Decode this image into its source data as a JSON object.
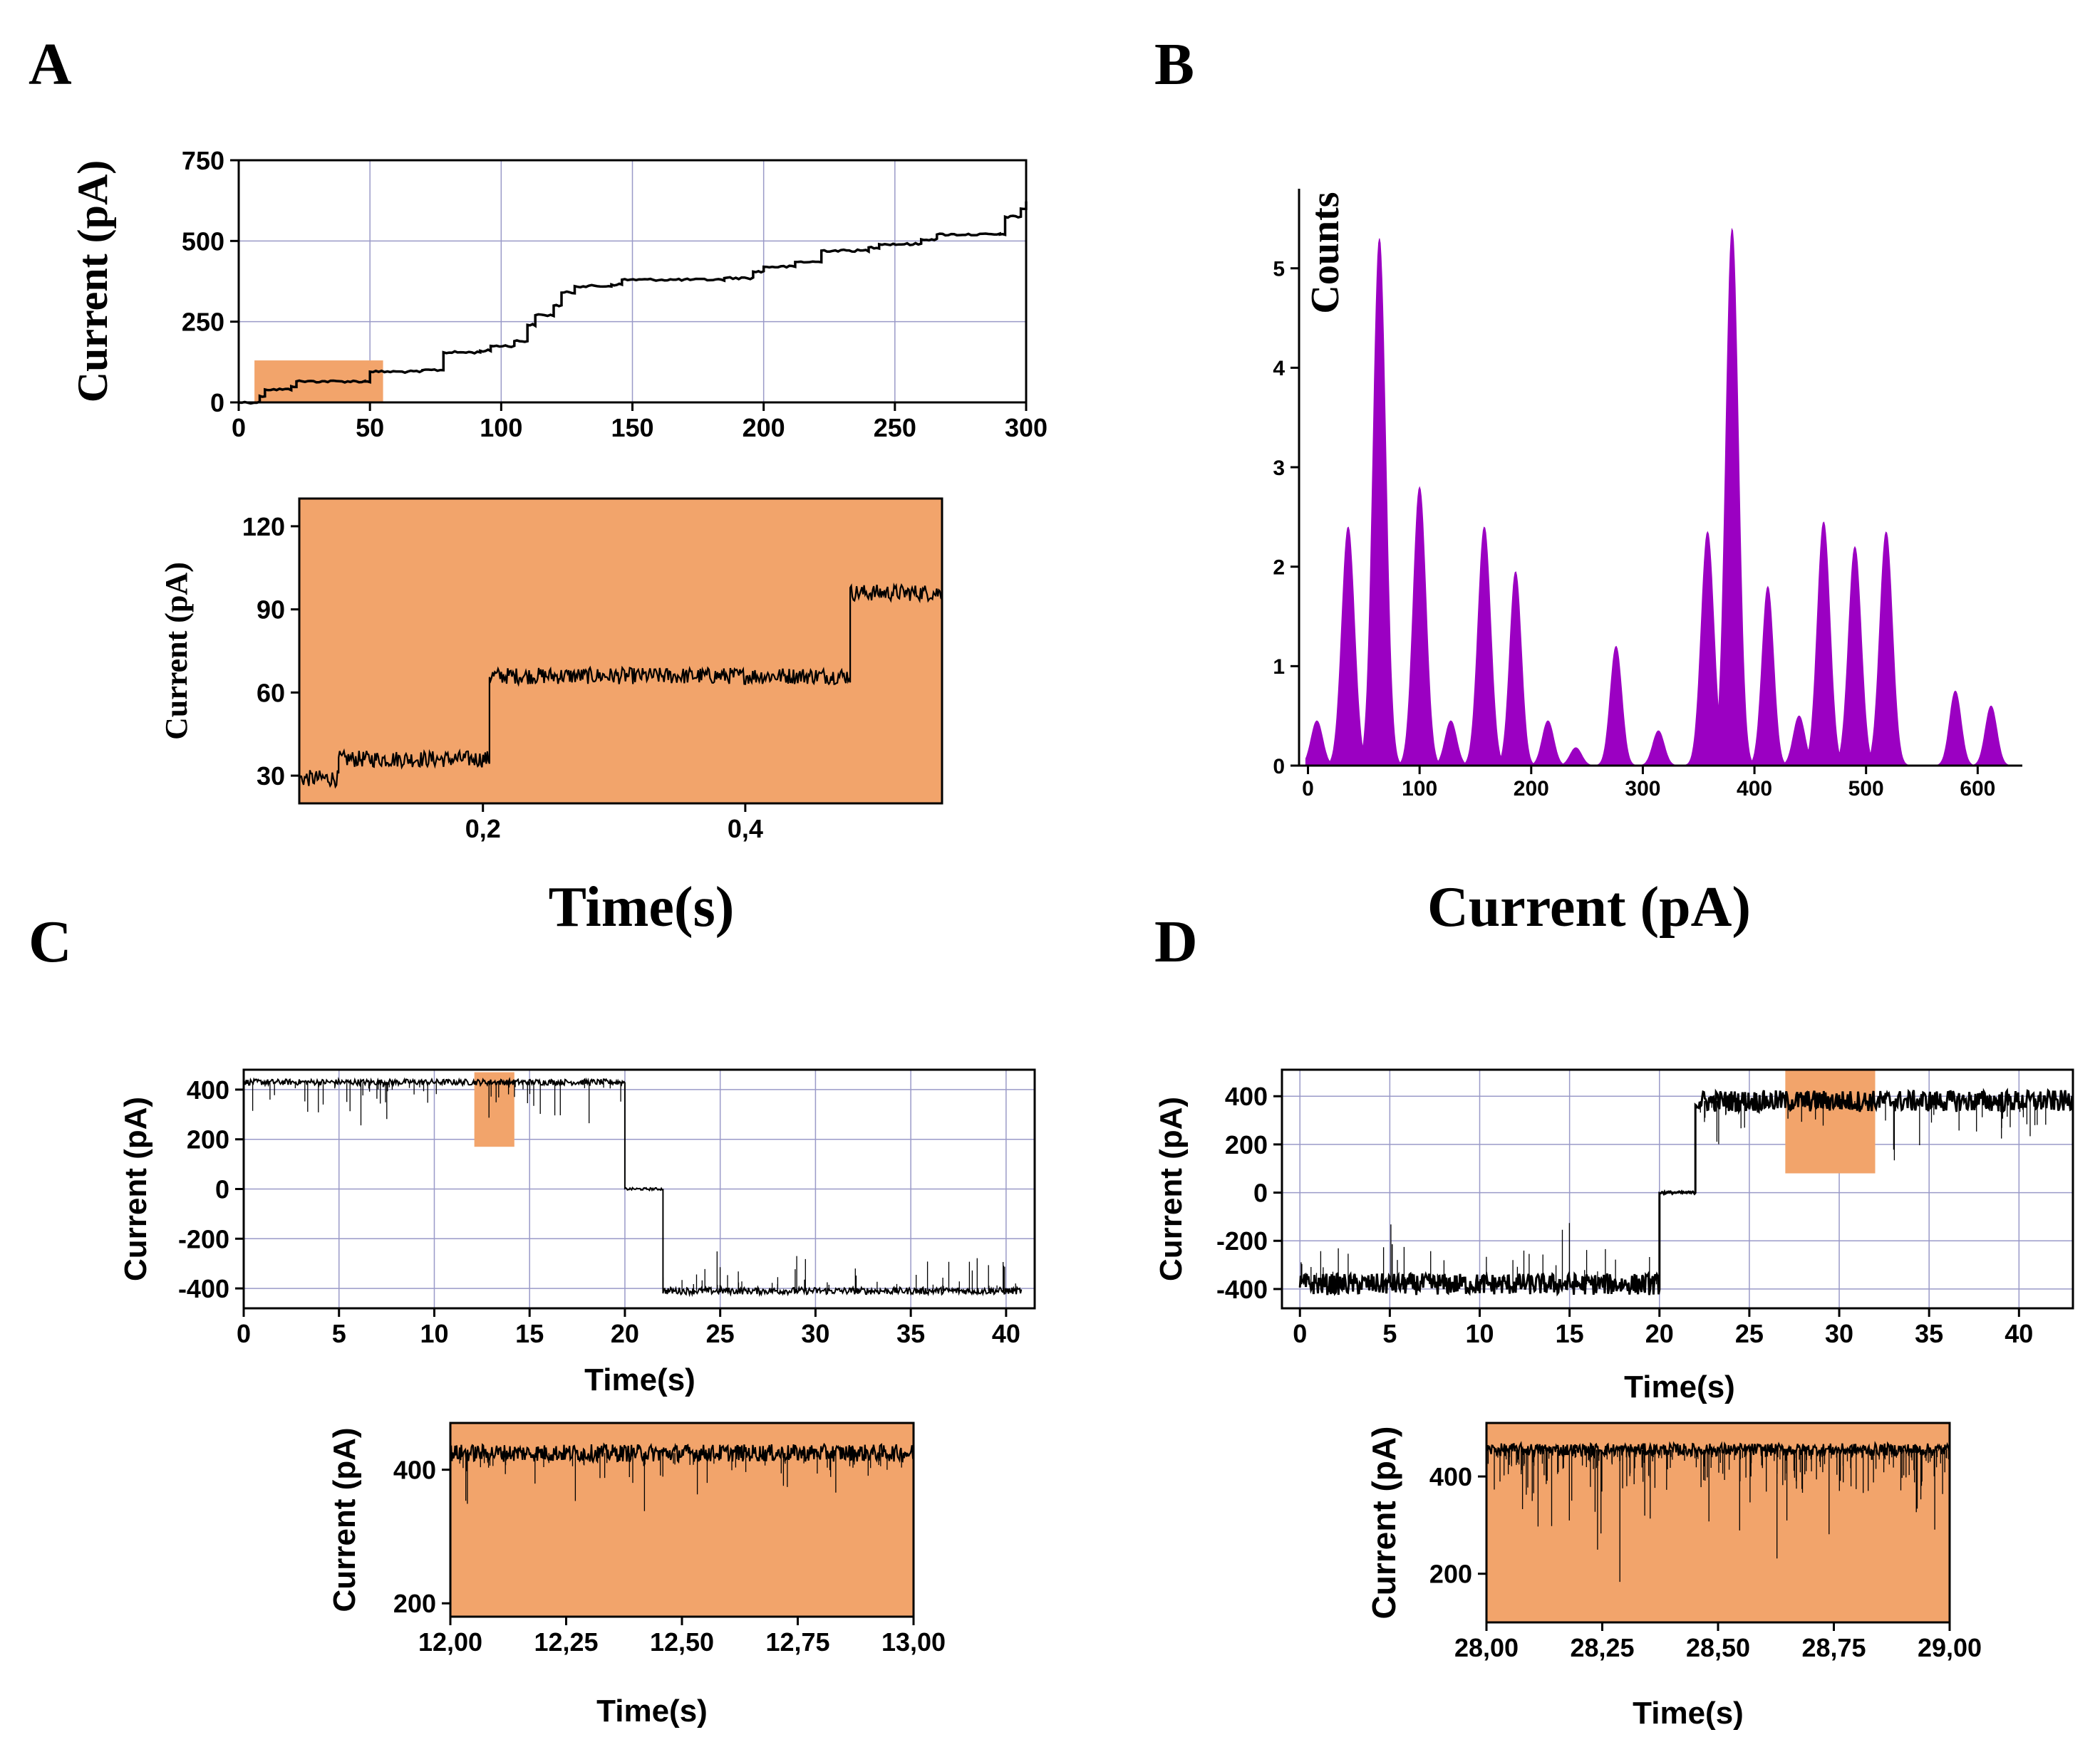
{
  "panels": {
    "A": {
      "letter": "A",
      "xlabel": "Time(s)"
    },
    "B": {
      "letter": "B",
      "xlabel": "Current (pA)"
    },
    "C": {
      "letter": "C"
    },
    "D": {
      "letter": "D"
    }
  },
  "colors": {
    "highlight": "#f2a46b",
    "trace": "#000000",
    "histogram": "#9b00c2",
    "grid": "#9a9ac8"
  },
  "chart_data": [
    {
      "id": "A_main",
      "type": "line",
      "ylabel": "Current (pA)",
      "xlim": [
        0,
        300
      ],
      "ylim": [
        0,
        750
      ],
      "xticks": [
        0,
        50,
        100,
        150,
        200,
        250,
        300
      ],
      "yticks": [
        0,
        250,
        500,
        750
      ],
      "highlight": {
        "x": [
          6,
          55
        ],
        "y": [
          0,
          130
        ]
      },
      "steps": [
        [
          0,
          0
        ],
        [
          8,
          20
        ],
        [
          10,
          40
        ],
        [
          20,
          50
        ],
        [
          22,
          65
        ],
        [
          48,
          65
        ],
        [
          50,
          95
        ],
        [
          70,
          100
        ],
        [
          78,
          155
        ],
        [
          92,
          160
        ],
        [
          96,
          175
        ],
        [
          105,
          190
        ],
        [
          110,
          240
        ],
        [
          113,
          270
        ],
        [
          120,
          300
        ],
        [
          123,
          340
        ],
        [
          128,
          360
        ],
        [
          142,
          365
        ],
        [
          146,
          380
        ],
        [
          185,
          385
        ],
        [
          196,
          405
        ],
        [
          200,
          420
        ],
        [
          212,
          435
        ],
        [
          222,
          470
        ],
        [
          240,
          480
        ],
        [
          244,
          490
        ],
        [
          260,
          505
        ],
        [
          266,
          520
        ],
        [
          290,
          520
        ],
        [
          292,
          575
        ],
        [
          298,
          600
        ],
        [
          300,
          620
        ]
      ]
    },
    {
      "id": "A_inset",
      "type": "line",
      "ylabel": "Current (pA)",
      "xlim": [
        0.06,
        0.55
      ],
      "ylim": [
        20,
        130
      ],
      "xticks": [
        0.2,
        0.4
      ],
      "xtick_labels": [
        "0,2",
        "0,4"
      ],
      "yticks": [
        30,
        60,
        90,
        120
      ],
      "steps": [
        [
          0.06,
          29
        ],
        [
          0.09,
          36
        ],
        [
          0.205,
          66
        ],
        [
          0.48,
          96
        ],
        [
          0.55,
          96
        ]
      ]
    },
    {
      "id": "B_hist",
      "type": "area",
      "ylabel": "Counts",
      "xlim": [
        -8,
        640
      ],
      "ylim": [
        0,
        5.8
      ],
      "xticks": [
        0,
        100,
        200,
        300,
        400,
        500,
        600
      ],
      "yticks": [
        0,
        1,
        2,
        3,
        4,
        5
      ],
      "peaks": [
        {
          "center": 8,
          "height": 0.45
        },
        {
          "center": 36,
          "height": 2.4
        },
        {
          "center": 64,
          "height": 5.3
        },
        {
          "center": 100,
          "height": 2.8
        },
        {
          "center": 128,
          "height": 0.45
        },
        {
          "center": 158,
          "height": 2.4
        },
        {
          "center": 186,
          "height": 1.95
        },
        {
          "center": 215,
          "height": 0.45
        },
        {
          "center": 240,
          "height": 0.18
        },
        {
          "center": 276,
          "height": 1.2
        },
        {
          "center": 314,
          "height": 0.35
        },
        {
          "center": 358,
          "height": 2.35
        },
        {
          "center": 380,
          "height": 5.4
        },
        {
          "center": 412,
          "height": 1.8
        },
        {
          "center": 440,
          "height": 0.5
        },
        {
          "center": 462,
          "height": 2.45
        },
        {
          "center": 490,
          "height": 2.2
        },
        {
          "center": 518,
          "height": 2.35
        },
        {
          "center": 580,
          "height": 0.75
        },
        {
          "center": 612,
          "height": 0.6
        }
      ]
    },
    {
      "id": "C_main",
      "type": "line",
      "ylabel": "Current (pA)",
      "xlabel": "Time(s)",
      "xlim": [
        0,
        41.5
      ],
      "ylim": [
        -480,
        480
      ],
      "xticks": [
        0,
        5,
        10,
        15,
        20,
        25,
        30,
        35,
        40
      ],
      "yticks": [
        -400,
        -200,
        0,
        200,
        400
      ],
      "highlight": {
        "x": [
          12.1,
          14.2
        ],
        "y": [
          170,
          470
        ]
      },
      "segments": [
        {
          "x": [
            0,
            20
          ],
          "level": 430,
          "noise": 12,
          "spike_dir": -1
        },
        {
          "x": [
            20,
            22
          ],
          "level": 0,
          "noise": 5,
          "spike_dir": 0
        },
        {
          "x": [
            22,
            40.8
          ],
          "level": -410,
          "noise": 14,
          "spike_dir": 1
        }
      ]
    },
    {
      "id": "C_inset",
      "type": "line",
      "ylabel": "Current (pA)",
      "xlabel": "Time(s)",
      "xlim": [
        12,
        13
      ],
      "ylim": [
        180,
        470
      ],
      "xticks": [
        12,
        12.25,
        12.5,
        12.75,
        13
      ],
      "xtick_labels": [
        "12,00",
        "12,25",
        "12,50",
        "12,75",
        "13,00"
      ],
      "yticks": [
        200,
        400
      ],
      "level": 425
    },
    {
      "id": "D_main",
      "type": "line",
      "ylabel": "Current (pA)",
      "xlabel": "Time(s)",
      "xlim": [
        -1,
        43
      ],
      "ylim": [
        -480,
        510
      ],
      "xticks": [
        0,
        5,
        10,
        15,
        20,
        25,
        30,
        35,
        40
      ],
      "yticks": [
        -400,
        -200,
        0,
        200,
        400
      ],
      "highlight": {
        "x": [
          27,
          32
        ],
        "y": [
          80,
          510
        ]
      },
      "segments": [
        {
          "x": [
            0,
            20
          ],
          "level": -380,
          "noise": 45,
          "spike_dir": 1
        },
        {
          "x": [
            20,
            22
          ],
          "level": 0,
          "noise": 5,
          "spike_dir": 0
        },
        {
          "x": [
            22,
            43
          ],
          "level": 380,
          "noise": 45,
          "spike_dir": -1
        }
      ]
    },
    {
      "id": "D_inset",
      "type": "line",
      "ylabel": "Current (pA)",
      "xlabel": "Time(s)",
      "xlim": [
        28,
        29
      ],
      "ylim": [
        100,
        510
      ],
      "xticks": [
        28,
        28.25,
        28.5,
        28.75,
        29
      ],
      "xtick_labels": [
        "28,00",
        "28,25",
        "28,50",
        "28,75",
        "29,00"
      ],
      "yticks": [
        200,
        400
      ],
      "level": 455
    }
  ]
}
